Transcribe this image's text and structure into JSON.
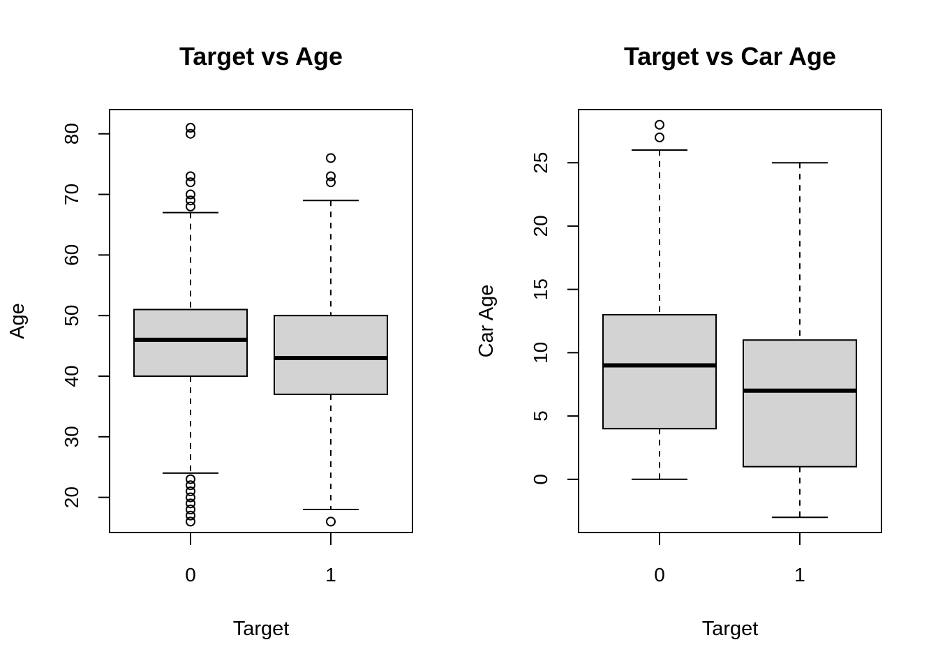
{
  "chart_data": [
    {
      "type": "boxplot",
      "title": "Target vs Age",
      "xlabel": "Target",
      "ylabel": "Age",
      "categories": [
        "0",
        "1"
      ],
      "ylim": [
        14.2,
        84.0
      ],
      "yticks": [
        20,
        30,
        40,
        50,
        60,
        70,
        80
      ],
      "grid": false,
      "boxes": [
        {
          "category": "0",
          "whisker_low": 24,
          "q1": 40,
          "median": 46,
          "q3": 51,
          "whisker_high": 67,
          "outliers": [
            68,
            69,
            70,
            72,
            73,
            80,
            81,
            16,
            17,
            18,
            19,
            20,
            21,
            22,
            23
          ]
        },
        {
          "category": "1",
          "whisker_low": 18,
          "q1": 37,
          "median": 43,
          "q3": 50,
          "whisker_high": 69,
          "outliers": [
            72,
            73,
            76,
            16
          ]
        }
      ]
    },
    {
      "type": "boxplot",
      "title": "Target vs Car Age",
      "xlabel": "Target",
      "ylabel": "Car Age",
      "categories": [
        "0",
        "1"
      ],
      "ylim": [
        -4.2,
        29.2
      ],
      "yticks": [
        0,
        5,
        10,
        15,
        20,
        25
      ],
      "grid": false,
      "boxes": [
        {
          "category": "0",
          "whisker_low": 0,
          "q1": 4,
          "median": 9,
          "q3": 13,
          "whisker_high": 26,
          "outliers": [
            27,
            28
          ]
        },
        {
          "category": "1",
          "whisker_low": -3,
          "q1": 1,
          "median": 7,
          "q3": 11,
          "whisker_high": 25,
          "outliers": []
        }
      ]
    }
  ]
}
